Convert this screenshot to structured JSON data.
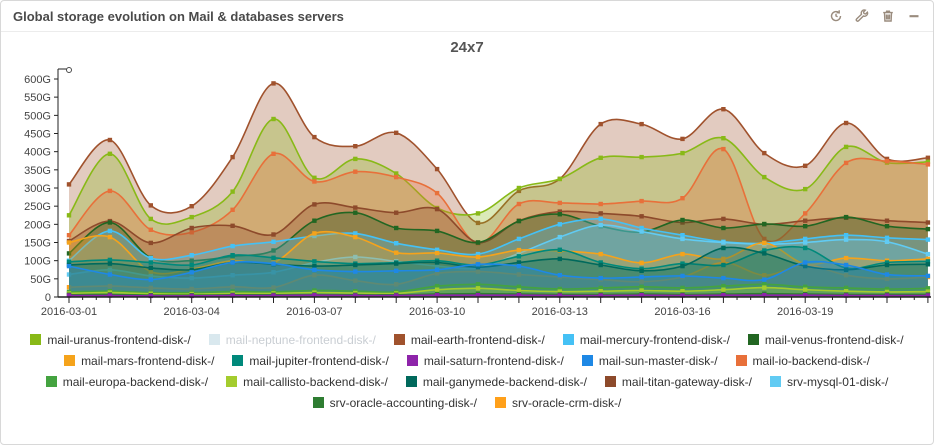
{
  "widget": {
    "title": "Global storage evolution on Mail & databases servers",
    "toolbar": [
      {
        "name": "refresh",
        "icon": "refresh-icon"
      },
      {
        "name": "configure",
        "icon": "wrench-icon"
      },
      {
        "name": "delete",
        "icon": "trash-icon"
      },
      {
        "name": "collapse",
        "icon": "minus-icon"
      }
    ]
  },
  "chart_data": {
    "type": "area",
    "title": "24x7",
    "ylabel": "",
    "xlabel": "",
    "ylim": [
      0,
      620
    ],
    "y_tick_step": 50,
    "y_ticks": [
      "0",
      "50G",
      "100G",
      "150G",
      "200G",
      "250G",
      "300G",
      "350G",
      "400G",
      "450G",
      "500G",
      "550G",
      "600G"
    ],
    "x_labels": [
      "2016-03-01",
      "2016-03-04",
      "2016-03-07",
      "2016-03-10",
      "2016-03-13",
      "2016-03-16",
      "2016-03-19"
    ],
    "x_label_days": [
      0,
      3,
      6,
      9,
      12,
      15,
      18
    ],
    "days": 22,
    "legend_position": "bottom",
    "grid": false,
    "draw_order": [
      "mail-earth-frontend-disk-/",
      "mail-uranus-frontend-disk-/",
      "mail-io-backend-disk-/",
      "mail-titan-gateway-disk-/",
      "mail-venus-frontend-disk-/",
      "mail-mercury-frontend-disk-/",
      "srv-mysql-01-disk-/",
      "mail-mars-frontend-disk-/",
      "srv-oracle-crm-disk-/",
      "mail-jupiter-frontend-disk-/",
      "mail-ganymede-backend-disk-/",
      "mail-sun-master-disk-/",
      "mail-europa-backend-disk-/",
      "mail-callisto-backend-disk-/",
      "srv-oracle-accounting-disk-/",
      "mail-saturn-frontend-disk-/"
    ],
    "series": [
      {
        "name": "mail-uranus-frontend-disk-/",
        "color": "#88B917",
        "hidden": false,
        "values": [
          225,
          394,
          215,
          220,
          290,
          490,
          328,
          380,
          340,
          245,
          230,
          300,
          325,
          383,
          385,
          396,
          437,
          330,
          297,
          413,
          370,
          372
        ]
      },
      {
        "name": "mail-neptune-frontend-disk-/",
        "color": "#D9E8EE",
        "hidden": true,
        "values": []
      },
      {
        "name": "mail-earth-frontend-disk-/",
        "color": "#A0522D",
        "hidden": false,
        "values": [
          310,
          432,
          252,
          250,
          385,
          588,
          440,
          415,
          452,
          352,
          204,
          292,
          325,
          476,
          476,
          435,
          517,
          396,
          361,
          479,
          380,
          383
        ]
      },
      {
        "name": "mail-mercury-frontend-disk-/",
        "color": "#45C1F5",
        "hidden": false,
        "values": [
          100,
          182,
          107,
          115,
          140,
          152,
          168,
          175,
          148,
          130,
          118,
          160,
          200,
          215,
          190,
          170,
          152,
          148,
          160,
          170,
          163,
          158
        ]
      },
      {
        "name": "mail-venus-frontend-disk-/",
        "color": "#226622",
        "hidden": false,
        "values": [
          120,
          205,
          108,
          100,
          112,
          128,
          210,
          232,
          190,
          182,
          150,
          209,
          228,
          195,
          179,
          212,
          190,
          201,
          195,
          220,
          195,
          187
        ]
      },
      {
        "name": "mail-mars-frontend-disk-/",
        "color": "#F5A31B",
        "hidden": false,
        "values": [
          150,
          165,
          70,
          77,
          100,
          95,
          175,
          165,
          122,
          121,
          110,
          129,
          127,
          118,
          94,
          118,
          105,
          149,
          91,
          107,
          100,
          105
        ]
      },
      {
        "name": "mail-jupiter-frontend-disk-/",
        "color": "#00897B",
        "hidden": false,
        "values": [
          97,
          102,
          95,
          88,
          115,
          108,
          98,
          92,
          95,
          100,
          88,
          112,
          130,
          95,
          78,
          92,
          88,
          128,
          135,
          80,
          95,
          98
        ]
      },
      {
        "name": "mail-saturn-frontend-disk-/",
        "color": "#8E24AA",
        "hidden": false,
        "values": [
          4,
          4,
          3,
          3,
          4,
          4,
          5,
          4,
          4,
          5,
          5,
          5,
          4,
          4,
          5,
          4,
          5,
          5,
          5,
          4,
          4,
          4
        ]
      },
      {
        "name": "mail-sun-master-disk-/",
        "color": "#1E88E5",
        "hidden": false,
        "values": [
          85,
          62,
          48,
          68,
          95,
          92,
          75,
          70,
          72,
          75,
          90,
          85,
          60,
          52,
          55,
          58,
          52,
          48,
          95,
          88,
          62,
          58
        ]
      },
      {
        "name": "mail-io-backend-disk-/",
        "color": "#E8703A",
        "hidden": false,
        "values": [
          170,
          292,
          185,
          178,
          240,
          394,
          318,
          345,
          330,
          286,
          148,
          256,
          259,
          256,
          264,
          272,
          407,
          160,
          230,
          369,
          374,
          365
        ]
      },
      {
        "name": "mail-europa-backend-disk-/",
        "color": "#44A340",
        "hidden": false,
        "values": [
          14,
          16,
          12,
          12,
          15,
          14,
          18,
          16,
          14,
          30,
          35,
          28,
          22,
          25,
          28,
          25,
          30,
          35,
          28,
          25,
          22,
          24
        ]
      },
      {
        "name": "mail-callisto-backend-disk-/",
        "color": "#A4CC2E",
        "hidden": false,
        "values": [
          10,
          12,
          9,
          8,
          10,
          10,
          12,
          11,
          10,
          20,
          24,
          18,
          15,
          16,
          18,
          16,
          20,
          26,
          20,
          16,
          14,
          15
        ]
      },
      {
        "name": "mail-ganymede-backend-disk-/",
        "color": "#00695C",
        "hidden": false,
        "values": [
          88,
          92,
          80,
          75,
          95,
          90,
          85,
          88,
          92,
          95,
          82,
          95,
          105,
          88,
          72,
          85,
          135,
          120,
          85,
          75,
          88,
          90
        ]
      },
      {
        "name": "mail-titan-gateway-disk-/",
        "color": "#8D4A2B",
        "hidden": false,
        "values": [
          154,
          209,
          149,
          190,
          196,
          172,
          255,
          246,
          232,
          242,
          150,
          210,
          235,
          230,
          222,
          205,
          215,
          200,
          210,
          218,
          210,
          205
        ]
      },
      {
        "name": "srv-mysql-01-disk-/",
        "color": "#61CBF3",
        "hidden": false,
        "values": [
          62,
          75,
          58,
          52,
          60,
          68,
          95,
          110,
          98,
          85,
          80,
          120,
          165,
          198,
          180,
          160,
          150,
          145,
          150,
          158,
          152,
          118
        ]
      },
      {
        "name": "srv-oracle-accounting-disk-/",
        "color": "#2E7D32",
        "hidden": false,
        "values": [
          6,
          7,
          5,
          5,
          6,
          6,
          7,
          6,
          6,
          8,
          9,
          8,
          7,
          7,
          8,
          7,
          8,
          9,
          8,
          7,
          7,
          7
        ]
      },
      {
        "name": "srv-oracle-crm-disk-/",
        "color": "#FFA01A",
        "hidden": false,
        "values": [
          27,
          30,
          25,
          22,
          28,
          26,
          60,
          45,
          35,
          65,
          70,
          62,
          55,
          48,
          42,
          55,
          95,
          60,
          88,
          60,
          50,
          55
        ]
      }
    ]
  }
}
